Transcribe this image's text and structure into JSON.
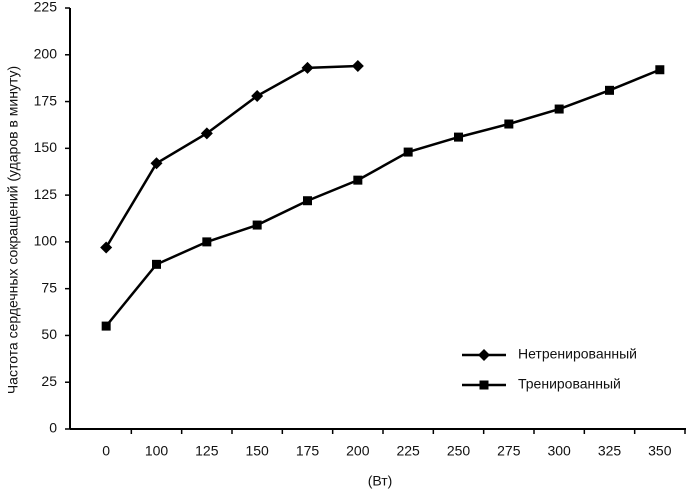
{
  "chart_data": {
    "type": "line",
    "y_label": "Частота сердечных сокращений (ударов в минуту)",
    "x_label": "(Вт)",
    "categories": [
      "0",
      "100",
      "125",
      "150",
      "175",
      "200",
      "225",
      "250",
      "275",
      "300",
      "325",
      "350"
    ],
    "series": [
      {
        "name": "Нетренированный",
        "color": "#000000",
        "marker": "diamond",
        "values": [
          97,
          142,
          158,
          178,
          193,
          194,
          null,
          null,
          null,
          null,
          null,
          null
        ]
      },
      {
        "name": "Тренированный",
        "color": "#000000",
        "marker": "square",
        "values": [
          55,
          88,
          100,
          109,
          122,
          133,
          148,
          156,
          163,
          171,
          181,
          192
        ]
      }
    ],
    "ylim": [
      0,
      225
    ],
    "yticks": [
      0,
      25,
      50,
      75,
      100,
      125,
      150,
      175,
      200,
      225
    ],
    "grid": false,
    "legend": "lower right"
  }
}
